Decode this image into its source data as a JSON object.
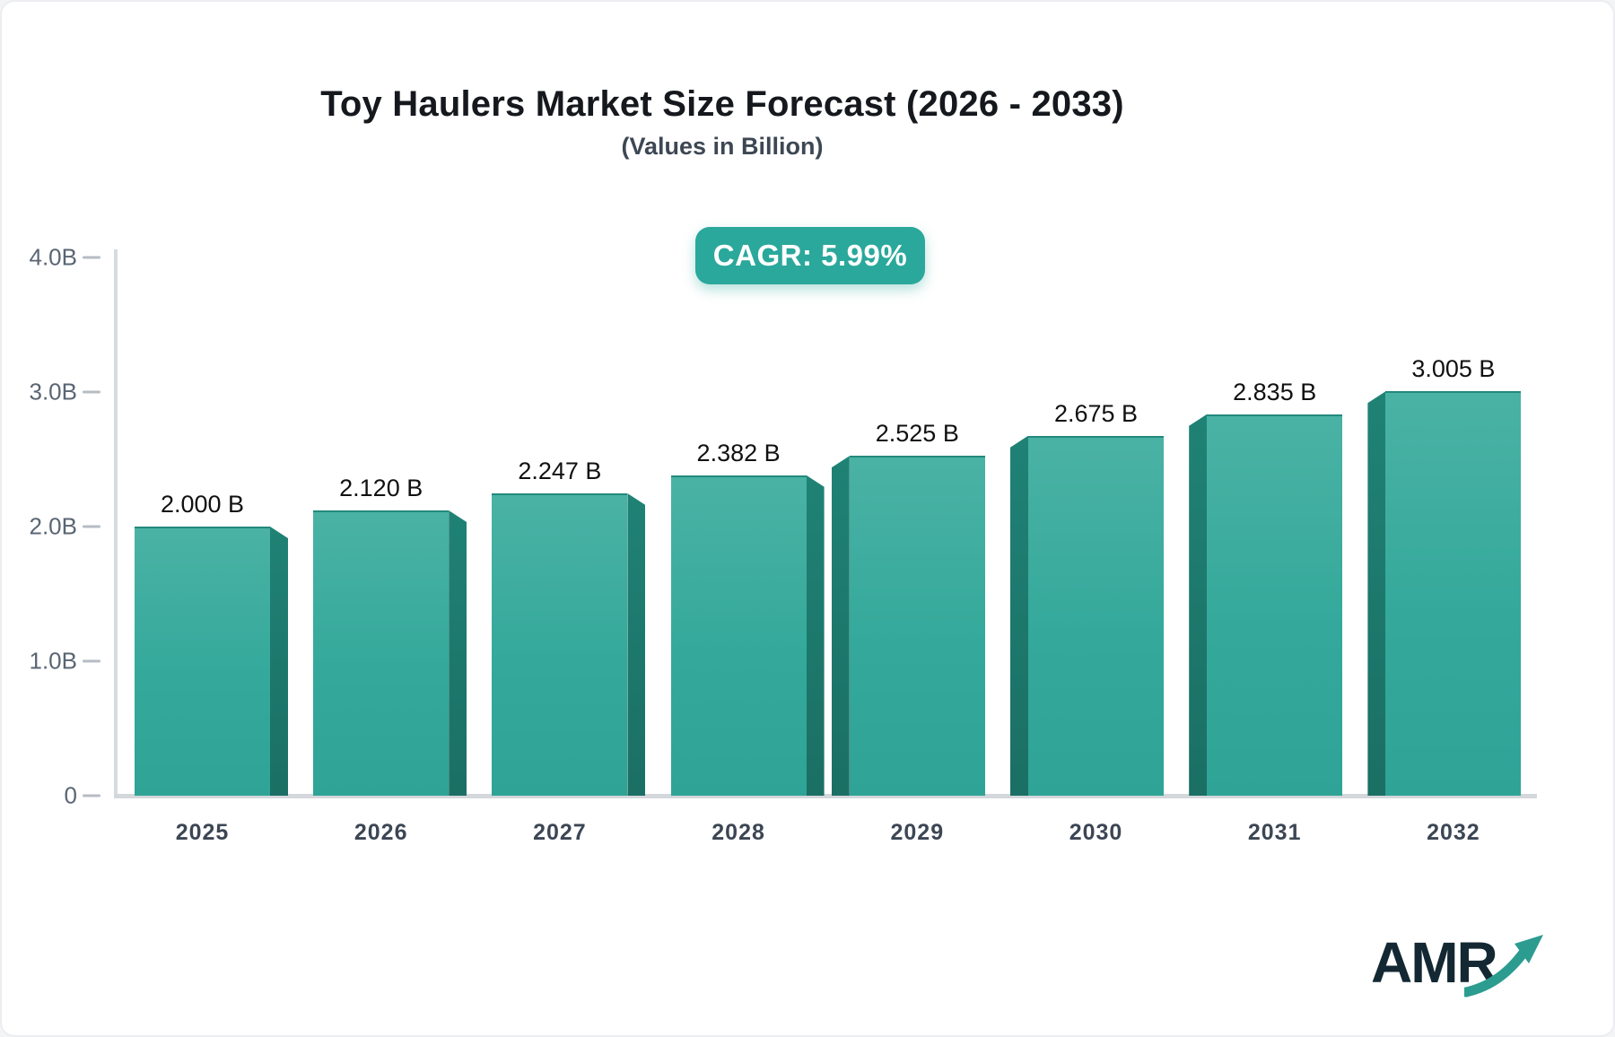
{
  "header": {
    "title": "Toy Haulers Market Size Forecast (2026 - 2033)",
    "subtitle": "(Values in Billion)",
    "cagr_label": "CAGR: 5.99%"
  },
  "chart_data": {
    "type": "bar",
    "title": "Toy Haulers Market Size Forecast (2026 - 2033)",
    "subtitle": "(Values in Billion)",
    "cagr_percent": 5.99,
    "unit": "Billion",
    "categories": [
      "2025",
      "2026",
      "2027",
      "2028",
      "2029",
      "2030",
      "2031",
      "2032"
    ],
    "values": [
      2.0,
      2.12,
      2.247,
      2.382,
      2.525,
      2.675,
      2.835,
      3.005
    ],
    "value_labels": [
      "2.000 B",
      "2.120 B",
      "2.247 B",
      "2.382 B",
      "2.525 B",
      "2.675 B",
      "2.835 B",
      "3.005 B"
    ],
    "ylim": [
      0,
      4.0
    ],
    "ytick_values": [
      4,
      3,
      2,
      1,
      0
    ],
    "ytick_labels": [
      "4.0B",
      "3.0B",
      "2.0B",
      "1.0B",
      "0"
    ],
    "grid": false,
    "legend_position": "none",
    "bar_style": "3d-perspective-center-vanishing"
  },
  "colors": {
    "accent_teal": "#2aa89b",
    "bar_face_top": "#4ab2a5",
    "bar_face_bottom": "#2fa396",
    "bar_side_dark": "#1e7e71",
    "axis_line": "#d7dade",
    "ytick_label": "#5a6573",
    "xtick_label": "#3c4654",
    "value_label": "#111111",
    "title_text": "#15181d",
    "subtitle_text": "#3d4754",
    "logo_text": "#132833",
    "logo_arrow": "#2d9c90"
  },
  "logo": {
    "text": "AMR"
  }
}
